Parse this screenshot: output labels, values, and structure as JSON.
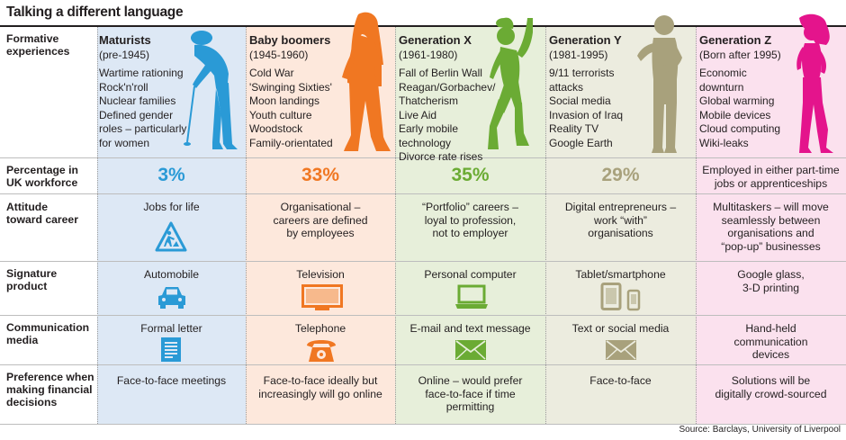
{
  "title": "Talking a different language",
  "row_labels": {
    "formative": [
      "Formative",
      "experiences"
    ],
    "percentage": [
      "Percentage in",
      "UK workforce"
    ],
    "attitude": [
      "Attitude",
      "toward career"
    ],
    "product": [
      "Signature",
      "product"
    ],
    "media": [
      "Communication",
      "media"
    ],
    "finance": [
      "Preference when",
      "making financial",
      "decisions"
    ]
  },
  "generations": [
    {
      "name": "Maturists",
      "years": "(pre-1945)",
      "experiences": [
        "Wartime rationing",
        "Rock'n'roll",
        "Nuclear families",
        "Defined gender",
        "roles – particularly",
        "for women"
      ],
      "percentage": "3%",
      "attitude": [
        "Jobs for life"
      ],
      "product": [
        "Automobile"
      ],
      "media": [
        "Formal letter"
      ],
      "finance": [
        "Face-to-face meetings"
      ]
    },
    {
      "name": "Baby boomers",
      "years": "(1945-1960)",
      "experiences": [
        "Cold War",
        "'Swinging Sixties'",
        "Moon landings",
        "Youth culture",
        "Woodstock",
        "Family-orientated"
      ],
      "percentage": "33%",
      "attitude": [
        "Organisational –",
        "careers are defined",
        "by employees"
      ],
      "product": [
        "Television"
      ],
      "media": [
        "Telephone"
      ],
      "finance": [
        "Face-to-face ideally but",
        "increasingly will go online"
      ]
    },
    {
      "name": "Generation X",
      "years": "(1961-1980)",
      "experiences": [
        "Fall of Berlin Wall",
        "Reagan/Gorbachev/",
        "Thatcherism",
        "Live Aid",
        "Early mobile",
        "technology",
        "Divorce rate rises"
      ],
      "percentage": "35%",
      "attitude": [
        "“Portfolio” careers –",
        "loyal to profession,",
        "not to employer"
      ],
      "product": [
        "Personal computer"
      ],
      "media": [
        "E-mail and text message"
      ],
      "finance": [
        "Online – would prefer",
        "face-to-face if time",
        "permitting"
      ]
    },
    {
      "name": "Generation Y",
      "years": "(1981-1995)",
      "experiences": [
        "9/11 terrorists",
        "attacks",
        "Social media",
        "Invasion of Iraq",
        "Reality TV",
        "Google Earth"
      ],
      "percentage": "29%",
      "attitude": [
        "Digital entrepreneurs –",
        "work “with”",
        "organisations"
      ],
      "product": [
        "Tablet/smartphone"
      ],
      "media": [
        "Text or social media"
      ],
      "finance": [
        "Face-to-face"
      ]
    },
    {
      "name": "Generation Z",
      "years": "(Born after 1995)",
      "experiences": [
        "Economic",
        "downturn",
        "Global warming",
        "Mobile devices",
        "Cloud computing",
        "Wiki-leaks"
      ],
      "percentage_text": [
        "Employed in either part-time",
        "jobs or apprenticeships"
      ],
      "attitude": [
        "Multitaskers – will move",
        "seamlessly between",
        "organisations and",
        "“pop-up” businesses"
      ],
      "product": [
        "Google glass,",
        "3-D printing"
      ],
      "media": [
        "Hand-held",
        "communication",
        "devices"
      ],
      "finance": [
        "Solutions will be",
        "digitally crowd-sourced"
      ]
    }
  ],
  "colors": {
    "maturists": "#2a9ad6",
    "baby_boomers": "#f07722",
    "generation_x": "#6bab34",
    "generation_y": "#a8a17c",
    "generation_z": "#e4148c",
    "percentage_text": "#ee7d22"
  },
  "icons": {
    "maturists_attitude": "road-works-sign-icon",
    "maturists_product": "car-icon",
    "maturists_media": "letter-icon",
    "baby_boomers_product": "television-icon",
    "baby_boomers_media": "telephone-icon",
    "generation_x_product": "laptop-icon",
    "generation_x_media": "envelope-icon",
    "generation_y_product": "tablet-smartphone-icon",
    "generation_y_media": "envelope-icon"
  },
  "source": "Source: Barclays, University of Liverpool"
}
